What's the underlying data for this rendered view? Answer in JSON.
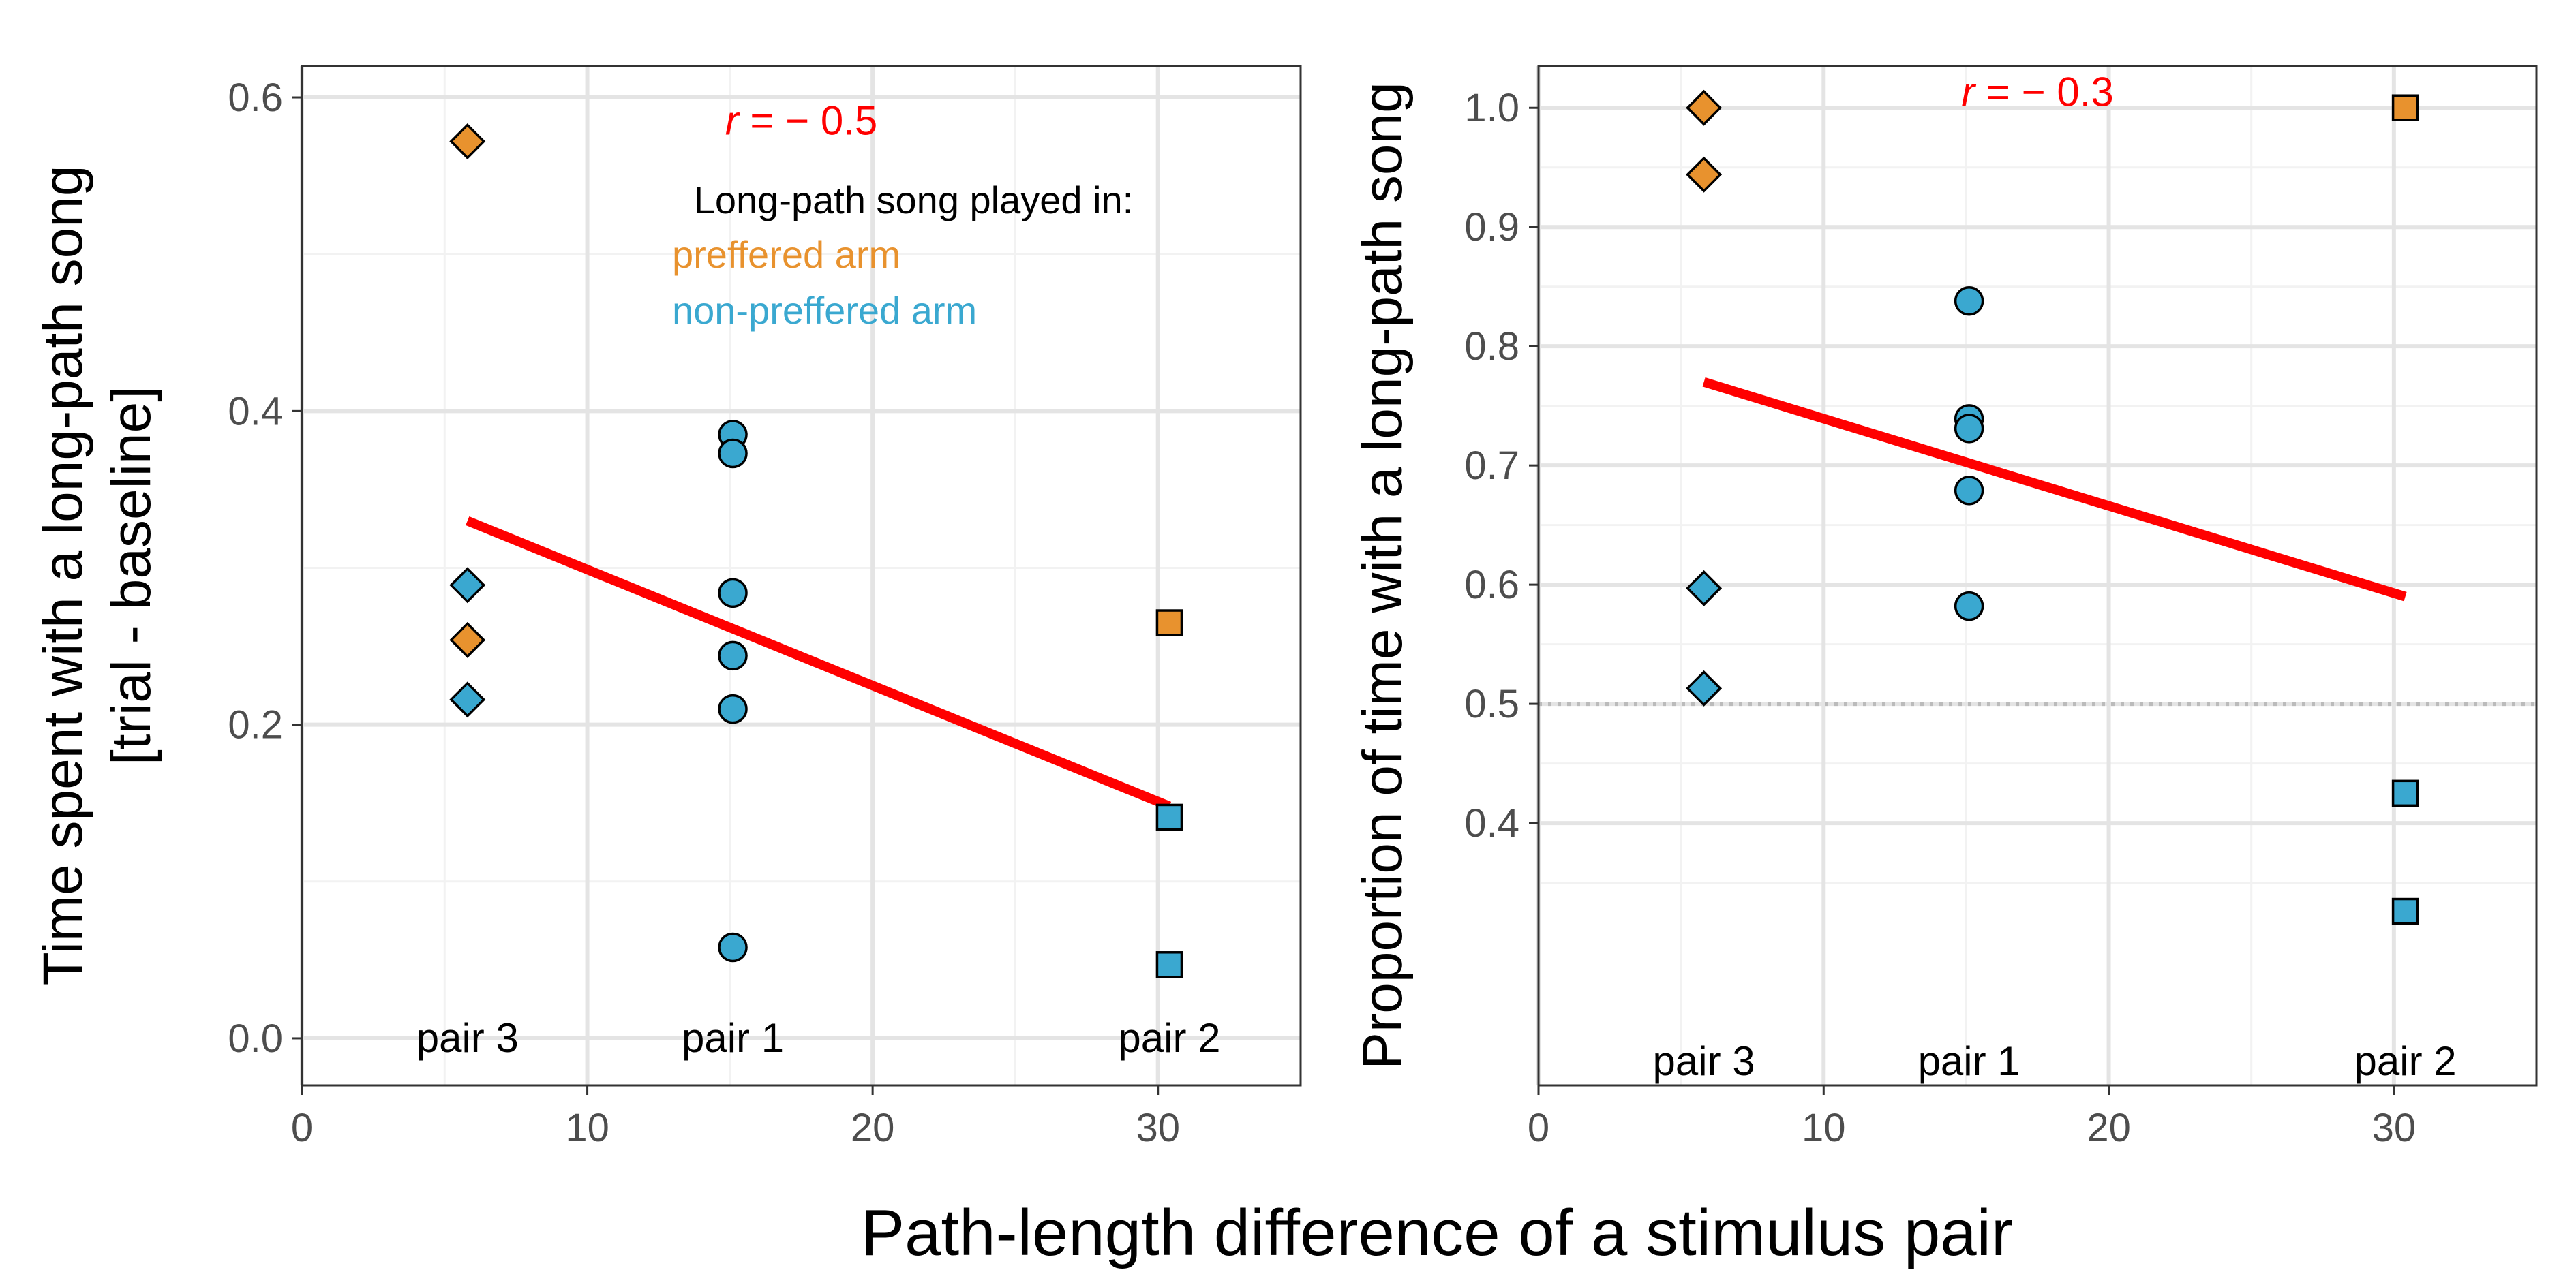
{
  "figure": {
    "xlabel": "Path-length difference of a stimulus pair"
  },
  "colors": {
    "preferred": "#E8922E",
    "non_preferred": "#3AA8D0",
    "fit": "#FF0000",
    "grid_major": "#E4E4E4",
    "grid_minor": "#F2F2F2",
    "axis_text": "#4D4D4D",
    "reference_line": "#BBBBBB"
  },
  "chart_data": [
    {
      "type": "scatter",
      "panel": "left",
      "ylabel": [
        "Time spent with a long-path song",
        "[trial - baseline]"
      ],
      "xlim": [
        0,
        35
      ],
      "ylim": [
        -0.03,
        0.62
      ],
      "xticks": [
        0,
        10,
        20,
        30
      ],
      "yticks": [
        0.0,
        0.2,
        0.4,
        0.6
      ],
      "ytick_labels": [
        "0.0",
        "0.2",
        "0.4",
        "0.6"
      ],
      "grid": true,
      "r_label": {
        "r": "r",
        "rest": " = − 0.5",
        "x": 17.5,
        "y": 0.585
      },
      "legend": {
        "title": "Long-path song played in:",
        "entries": [
          {
            "label": "preffered arm",
            "group": "preferred"
          },
          {
            "label": "non-preffered arm",
            "group": "non_preferred"
          }
        ]
      },
      "pair_labels": [
        {
          "label": "pair 3",
          "x": 5.8
        },
        {
          "label": "pair 1",
          "x": 15.1
        },
        {
          "label": "pair 2",
          "x": 30.4
        }
      ],
      "pair_label_y": 0.0,
      "fit_line": {
        "x": [
          5.8,
          30.4
        ],
        "y": [
          0.33,
          0.148
        ]
      },
      "points": [
        {
          "x": 5.8,
          "y": 0.572,
          "shape": "diamond",
          "group": "preferred"
        },
        {
          "x": 5.8,
          "y": 0.289,
          "shape": "diamond",
          "group": "non_preferred"
        },
        {
          "x": 5.8,
          "y": 0.254,
          "shape": "diamond",
          "group": "preferred"
        },
        {
          "x": 5.8,
          "y": 0.216,
          "shape": "diamond",
          "group": "non_preferred"
        },
        {
          "x": 15.1,
          "y": 0.385,
          "shape": "circle",
          "group": "non_preferred"
        },
        {
          "x": 15.1,
          "y": 0.373,
          "shape": "circle",
          "group": "non_preferred"
        },
        {
          "x": 15.1,
          "y": 0.284,
          "shape": "circle",
          "group": "non_preferred"
        },
        {
          "x": 15.1,
          "y": 0.244,
          "shape": "circle",
          "group": "non_preferred"
        },
        {
          "x": 15.1,
          "y": 0.21,
          "shape": "circle",
          "group": "non_preferred"
        },
        {
          "x": 15.1,
          "y": 0.058,
          "shape": "circle",
          "group": "non_preferred"
        },
        {
          "x": 30.4,
          "y": 0.265,
          "shape": "square",
          "group": "preferred"
        },
        {
          "x": 30.4,
          "y": 0.141,
          "shape": "square",
          "group": "non_preferred"
        },
        {
          "x": 30.4,
          "y": 0.047,
          "shape": "square",
          "group": "non_preferred"
        }
      ]
    },
    {
      "type": "scatter",
      "panel": "right",
      "ylabel": [
        "Proportion of time with a long-path song"
      ],
      "xlim": [
        0,
        35
      ],
      "ylim": [
        0.18,
        1.035
      ],
      "xticks": [
        0,
        10,
        20,
        30
      ],
      "yticks": [
        0.4,
        0.5,
        0.6,
        0.7,
        0.8,
        0.9,
        1.0
      ],
      "ytick_labels": [
        "0.4",
        "0.5",
        "0.6",
        "0.7",
        "0.8",
        "0.9",
        "1.0"
      ],
      "grid": true,
      "reference_line_y": 0.5,
      "r_label": {
        "r": "r",
        "rest": " = − 0.3",
        "x": 17.5,
        "y": 1.013
      },
      "pair_labels": [
        {
          "label": "pair 3",
          "x": 5.8
        },
        {
          "label": "pair 1",
          "x": 15.1
        },
        {
          "label": "pair 2",
          "x": 30.4
        }
      ],
      "pair_label_y": 0.2,
      "fit_line": {
        "x": [
          5.8,
          30.4
        ],
        "y": [
          0.77,
          0.59
        ]
      },
      "points": [
        {
          "x": 5.8,
          "y": 1.0,
          "shape": "diamond",
          "group": "preferred"
        },
        {
          "x": 5.8,
          "y": 0.944,
          "shape": "diamond",
          "group": "preferred"
        },
        {
          "x": 5.8,
          "y": 0.597,
          "shape": "diamond",
          "group": "non_preferred"
        },
        {
          "x": 5.8,
          "y": 0.513,
          "shape": "diamond",
          "group": "non_preferred"
        },
        {
          "x": 15.1,
          "y": 0.838,
          "shape": "circle",
          "group": "non_preferred"
        },
        {
          "x": 15.1,
          "y": 0.739,
          "shape": "circle",
          "group": "non_preferred"
        },
        {
          "x": 15.1,
          "y": 0.731,
          "shape": "circle",
          "group": "non_preferred"
        },
        {
          "x": 15.1,
          "y": 0.679,
          "shape": "circle",
          "group": "non_preferred"
        },
        {
          "x": 15.1,
          "y": 0.582,
          "shape": "circle",
          "group": "non_preferred"
        },
        {
          "x": 30.4,
          "y": 1.0,
          "shape": "square",
          "group": "preferred"
        },
        {
          "x": 30.4,
          "y": 0.425,
          "shape": "square",
          "group": "non_preferred"
        },
        {
          "x": 30.4,
          "y": 0.326,
          "shape": "square",
          "group": "non_preferred"
        }
      ]
    }
  ]
}
